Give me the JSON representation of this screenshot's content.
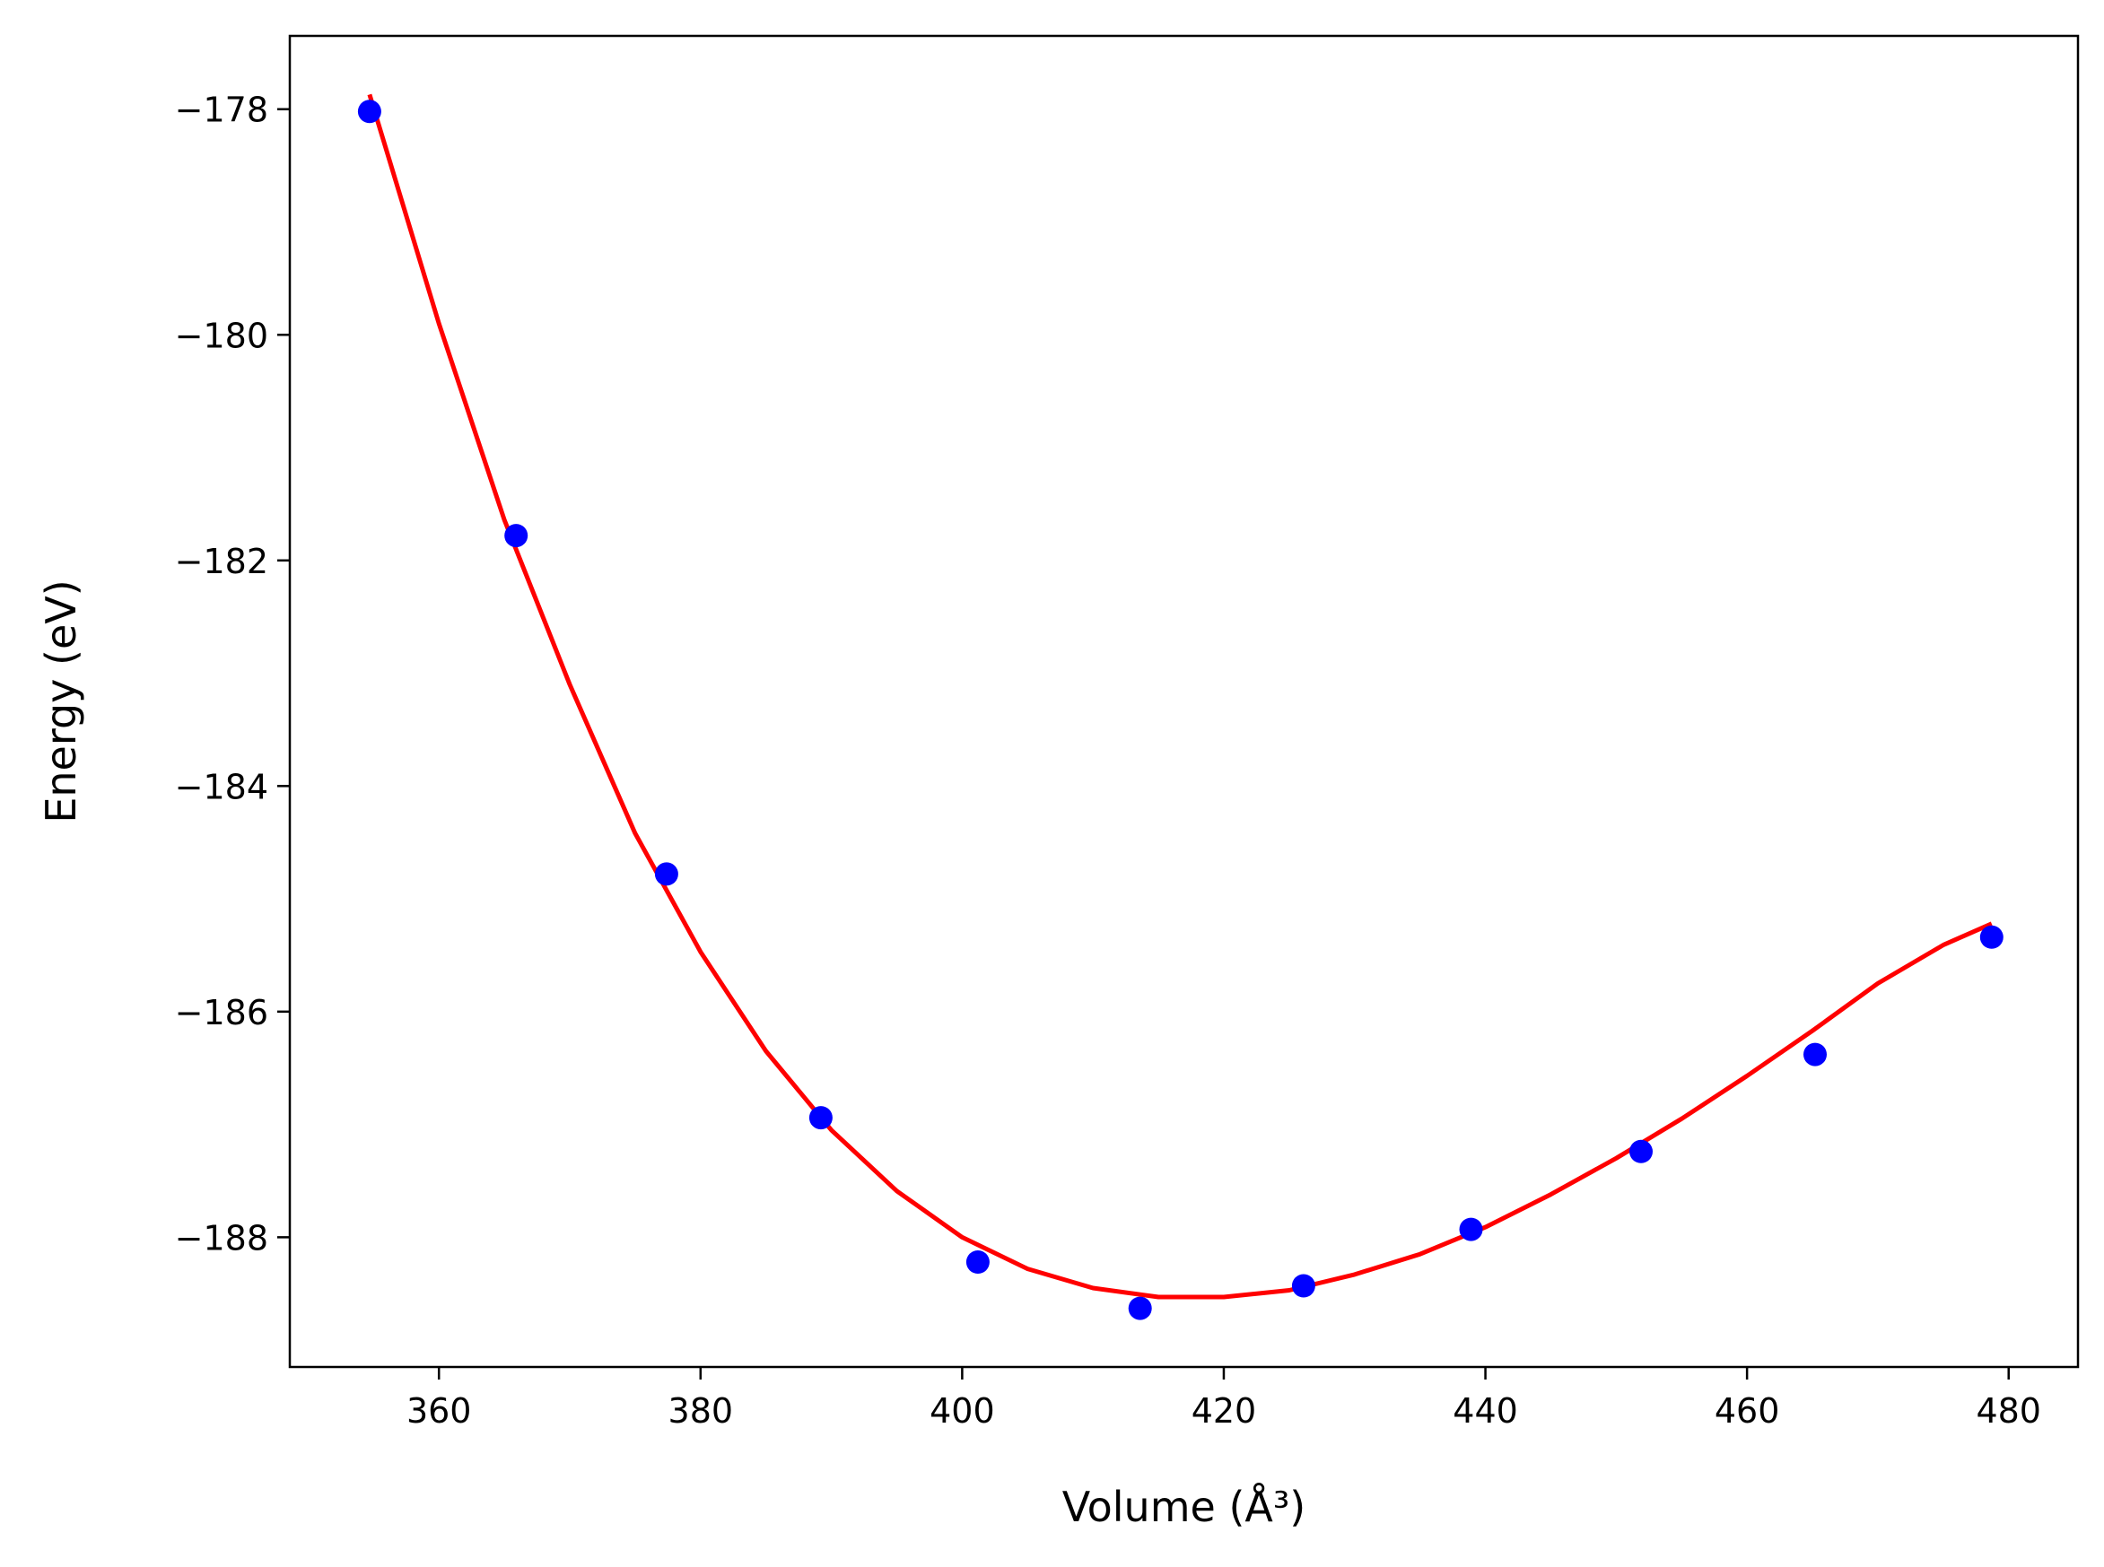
{
  "chart_data": {
    "type": "scatter",
    "title": "",
    "xlabel": "Volume (Å³)",
    "ylabel": "Energy (eV)",
    "xlim": [
      348.6,
      485.3
    ],
    "ylim": [
      -189.15,
      -177.35
    ],
    "xticks": [
      360,
      380,
      400,
      420,
      440,
      460,
      480
    ],
    "yticks": [
      -178,
      -180,
      -182,
      -184,
      -186,
      -188
    ],
    "xtick_labels": [
      "360",
      "380",
      "400",
      "420",
      "440",
      "460",
      "480"
    ],
    "ytick_labels": [
      "−178",
      "−180",
      "−182",
      "−184",
      "−186",
      "−188"
    ],
    "grid": false,
    "series": [
      {
        "kind": "points",
        "color": "#0000ff",
        "x": [
          354.7,
          365.9,
          377.4,
          389.2,
          401.2,
          413.6,
          426.1,
          438.9,
          451.9,
          465.2,
          478.7
        ],
        "y": [
          -178.02,
          -181.78,
          -184.78,
          -186.94,
          -188.22,
          -188.63,
          -188.43,
          -187.93,
          -187.24,
          -186.38,
          -185.34
        ]
      },
      {
        "kind": "fit-line",
        "color": "#ff0000",
        "x": [
          354.7,
          360,
          365,
          370,
          375,
          380,
          385,
          390,
          395,
          400,
          405,
          410,
          415,
          420,
          425,
          430,
          435,
          440,
          445,
          450,
          455,
          460,
          465,
          470,
          475,
          478.7
        ],
        "y": [
          -177.87,
          -179.9,
          -181.64,
          -183.1,
          -184.42,
          -185.47,
          -186.35,
          -187.05,
          -187.59,
          -188.0,
          -188.28,
          -188.45,
          -188.53,
          -188.53,
          -188.47,
          -188.33,
          -188.15,
          -187.91,
          -187.62,
          -187.3,
          -186.95,
          -186.57,
          -186.17,
          -185.75,
          -185.41,
          -185.22
        ]
      }
    ]
  }
}
